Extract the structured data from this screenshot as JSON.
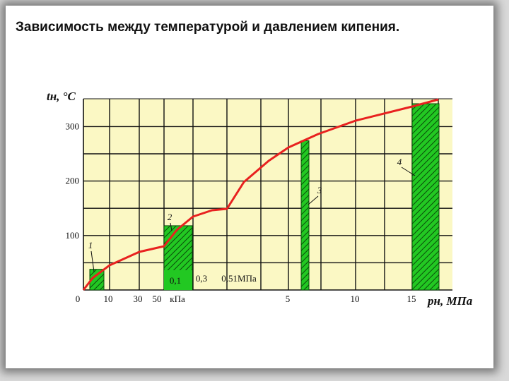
{
  "slide": {
    "title": "Зависимость между температурой и давлением кипения."
  },
  "chart_data": {
    "type": "line",
    "title": "Зависимость между температурой и давлением кипения.",
    "ylabel": "tн, °C",
    "xlabel": "pн, МПа",
    "ylim": [
      0,
      340
    ],
    "y_ticks": [
      "100",
      "200",
      "300"
    ],
    "x_ticks": [
      "0",
      "10",
      "30",
      "50",
      "кПа",
      "0,1",
      "0,3",
      "0,51МПа",
      "5",
      "10",
      "15",
      "pн, МПа"
    ],
    "grid": true,
    "series": [
      {
        "color": "#e8211f",
        "points": [
          {
            "p": "0",
            "t": 0
          },
          {
            "p": "10 кПа",
            "t": 46
          },
          {
            "p": "30 кПа",
            "t": 69
          },
          {
            "p": "50 кПа",
            "t": 81
          },
          {
            "p": "0,1 МПа",
            "t": 100
          },
          {
            "p": "0,3 МПа",
            "t": 134
          },
          {
            "p": "0,51 МПа",
            "t": 153
          },
          {
            "p": "5 МПа",
            "t": 264
          },
          {
            "p": "10 МПа",
            "t": 311
          },
          {
            "p": "15 МПа",
            "t": 342
          }
        ]
      }
    ],
    "regions": [
      {
        "label": "1",
        "color": "#22c822"
      },
      {
        "label": "2",
        "color": "#22c822"
      },
      {
        "label": "3",
        "color": "#22c822"
      },
      {
        "label": "4",
        "color": "#22c822"
      }
    ]
  }
}
